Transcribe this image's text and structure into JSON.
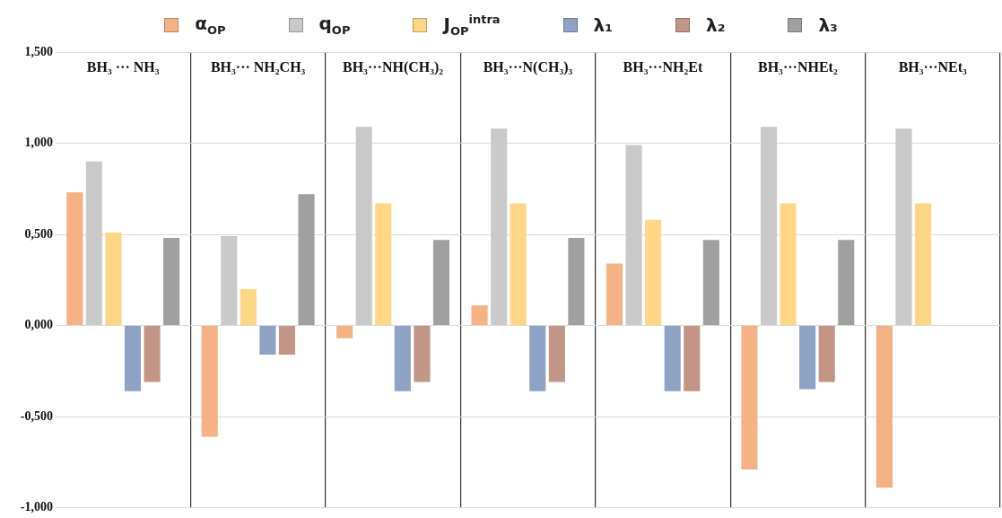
{
  "chart_data": {
    "type": "bar",
    "categories": [
      "BH₃ ··· NH₃",
      "BH₃··· NH₂CH₃",
      "BH₃···NH(CH₃)₂",
      "BH₃···N(CH₃)₃",
      "BH₃···NH₂Et",
      "BH₃···NHEt₂",
      "BH₃···NEt₃"
    ],
    "series": [
      {
        "name": "α$_{OP}$",
        "color": "#f4b183",
        "values": [
          0.73,
          -0.61,
          -0.07,
          0.11,
          0.34,
          -0.79,
          -0.89
        ]
      },
      {
        "name": "q$_{OP}$",
        "color": "#c9c9c9",
        "values": [
          0.9,
          0.49,
          1.09,
          1.08,
          0.99,
          1.09,
          1.08
        ]
      },
      {
        "name": "J$_{OP}$$^{intra}$",
        "color": "#ffd685",
        "values": [
          0.51,
          0.2,
          0.67,
          0.67,
          0.58,
          0.67,
          0.67
        ]
      },
      {
        "name": "λ₁",
        "color": "#8ea2c4",
        "values": [
          -0.36,
          -0.16,
          -0.36,
          -0.36,
          -0.36,
          -0.35,
          null
        ]
      },
      {
        "name": "λ₂",
        "color": "#c39587",
        "values": [
          -0.31,
          -0.16,
          -0.31,
          -0.31,
          -0.36,
          -0.31,
          null
        ]
      },
      {
        "name": "λ₃",
        "color": "#a0a0a0",
        "values": [
          0.48,
          0.72,
          0.47,
          0.48,
          0.47,
          0.47,
          null
        ]
      }
    ],
    "ylim": [
      -1,
      1.5
    ],
    "yticks": [
      {
        "value": -1,
        "label": "-1,000"
      },
      {
        "value": -0.5,
        "label": "-0,500"
      },
      {
        "value": 0,
        "label": "0,000"
      },
      {
        "value": 0.5,
        "label": "0,500"
      },
      {
        "value": 1,
        "label": "1,000"
      },
      {
        "value": 1.5,
        "label": "1,500"
      }
    ],
    "grid": true,
    "legend": "top"
  }
}
